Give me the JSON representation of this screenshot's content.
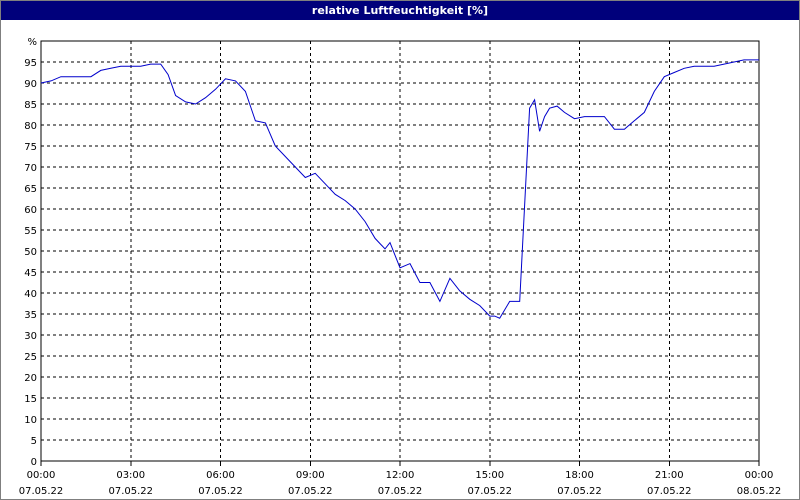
{
  "window": {
    "title": "relative Luftfeuchtigkeit [%]"
  },
  "chart_data": {
    "type": "line",
    "title": "relative Luftfeuchtigkeit [%]",
    "ylabel": "%",
    "xlabel": "",
    "ylim": [
      0,
      100
    ],
    "yticks": [
      0,
      5,
      10,
      15,
      20,
      25,
      30,
      35,
      40,
      45,
      50,
      55,
      60,
      65,
      70,
      75,
      80,
      85,
      90,
      95
    ],
    "y_unit_label": "%",
    "xlim": [
      "07.05.22 00:00",
      "08.05.22 00:00"
    ],
    "xticks": [
      {
        "time": "00:00",
        "date": "07.05.22"
      },
      {
        "time": "03:00",
        "date": "07.05.22"
      },
      {
        "time": "06:00",
        "date": "07.05.22"
      },
      {
        "time": "09:00",
        "date": "07.05.22"
      },
      {
        "time": "12:00",
        "date": "07.05.22"
      },
      {
        "time": "15:00",
        "date": "07.05.22"
      },
      {
        "time": "18:00",
        "date": "07.05.22"
      },
      {
        "time": "21:00",
        "date": "07.05.22"
      },
      {
        "time": "00:00",
        "date": "08.05.22"
      }
    ],
    "grid": true,
    "line_color": "#0000cc",
    "series": [
      {
        "x": [
          "00:00",
          "00:20",
          "00:40",
          "01:00",
          "01:20",
          "01:40",
          "02:00",
          "02:20",
          "02:40",
          "03:00",
          "03:20",
          "03:40",
          "04:00",
          "04:15",
          "04:30",
          "04:50",
          "05:10",
          "05:30",
          "05:50",
          "06:10",
          "06:30",
          "06:50",
          "07:10",
          "07:30",
          "07:50",
          "08:10",
          "08:30",
          "08:50",
          "09:10",
          "09:30",
          "09:50",
          "10:10",
          "10:30",
          "10:50",
          "11:10",
          "11:30",
          "11:40",
          "12:00",
          "12:20",
          "12:40",
          "13:00",
          "13:20",
          "13:40",
          "14:00",
          "14:20",
          "14:40",
          "15:00",
          "15:10",
          "15:20",
          "15:40",
          "16:00",
          "16:20",
          "16:30",
          "16:40",
          "16:50",
          "17:00",
          "17:15",
          "17:30",
          "17:50",
          "18:10",
          "18:30",
          "18:50",
          "19:10",
          "19:30",
          "19:50",
          "20:10",
          "20:30",
          "20:50",
          "21:10",
          "21:30",
          "21:50",
          "22:10",
          "22:30",
          "22:50",
          "23:10",
          "23:30",
          "23:50",
          "00:00"
        ],
        "values": [
          90,
          90.5,
          91.5,
          91.5,
          91.5,
          91.5,
          93,
          93.5,
          94,
          94,
          94,
          94.5,
          94.5,
          92,
          87,
          85.5,
          85,
          86.5,
          88.5,
          91,
          90.5,
          88,
          81,
          80.5,
          75,
          72.5,
          70,
          67.5,
          68.5,
          66,
          63.5,
          62,
          60,
          57,
          53,
          50.5,
          52,
          46,
          47,
          42.5,
          42.5,
          38,
          43.5,
          40.5,
          38.5,
          37,
          34.5,
          34.5,
          34,
          38,
          38,
          84,
          86,
          78.5,
          82,
          84,
          84.5,
          83,
          81.5,
          82,
          82,
          82,
          79,
          79,
          81,
          83,
          88,
          91.5,
          92.5,
          93.5,
          94,
          94,
          94,
          94.5,
          95,
          95.5,
          95.5,
          95.5
        ]
      }
    ]
  }
}
